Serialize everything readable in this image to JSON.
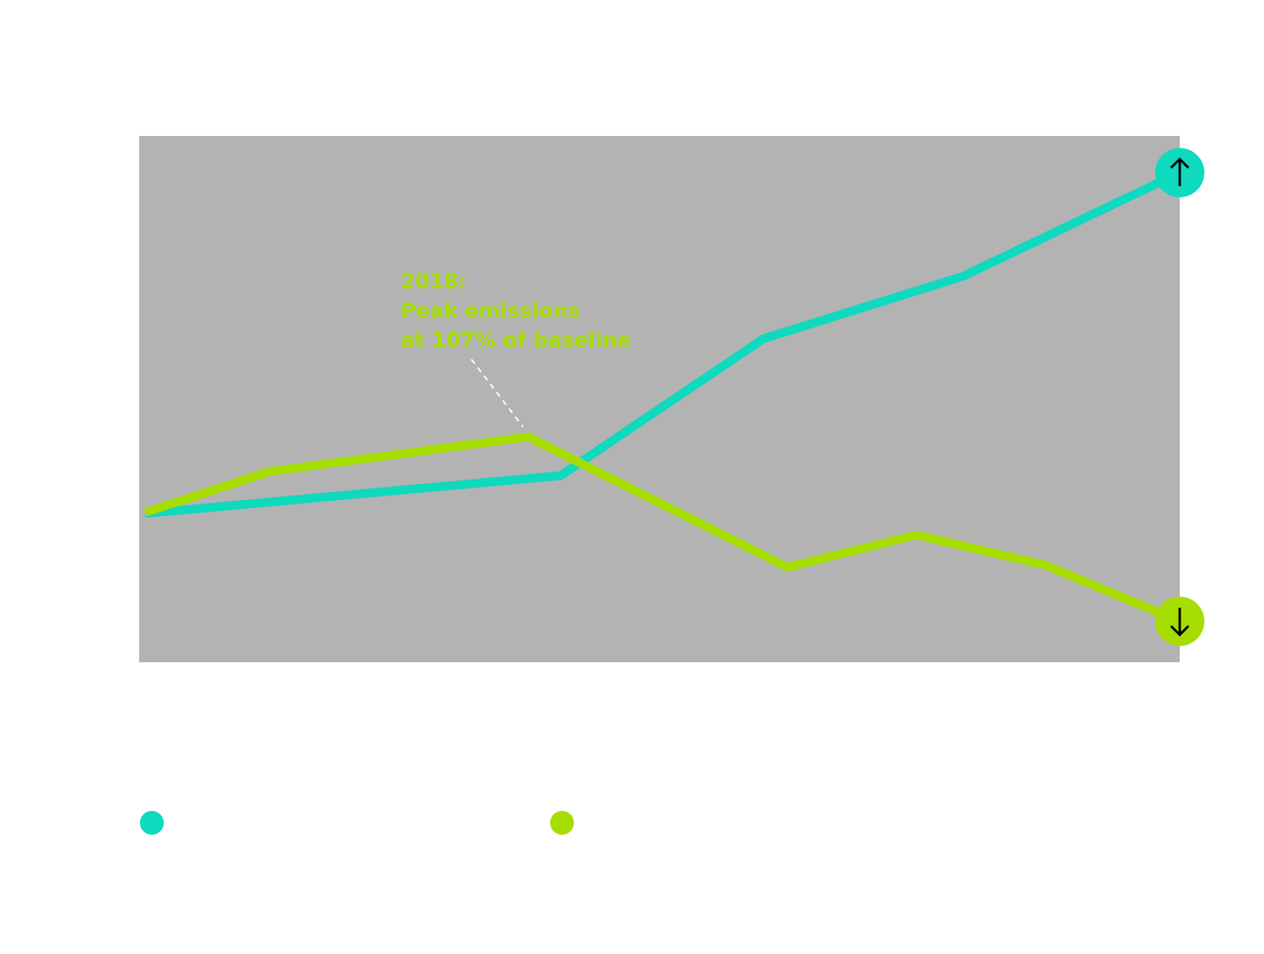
{
  "chart_data": {
    "type": "line",
    "annotation": [
      "2018:",
      "Peak emissions",
      "at 107% of baseline"
    ],
    "background": "#b3b3b3",
    "xlim": [
      0,
      100
    ],
    "ylim": [
      86.1,
      134.9
    ],
    "grid": false,
    "series": [
      {
        "color": "#0fd9bf",
        "x": [
          0.6,
          40.5,
          60.0,
          79.2,
          100
        ],
        "values": [
          99.9,
          103.4,
          116.1,
          121.9,
          131.5
        ]
      },
      {
        "color": "#a6dd00",
        "x": [
          0.6,
          12.6,
          37.4,
          62.3,
          74.7,
          87.1,
          100
        ],
        "values": [
          100,
          103.8,
          107,
          94.9,
          97.9,
          95.1,
          89.9
        ]
      }
    ]
  }
}
